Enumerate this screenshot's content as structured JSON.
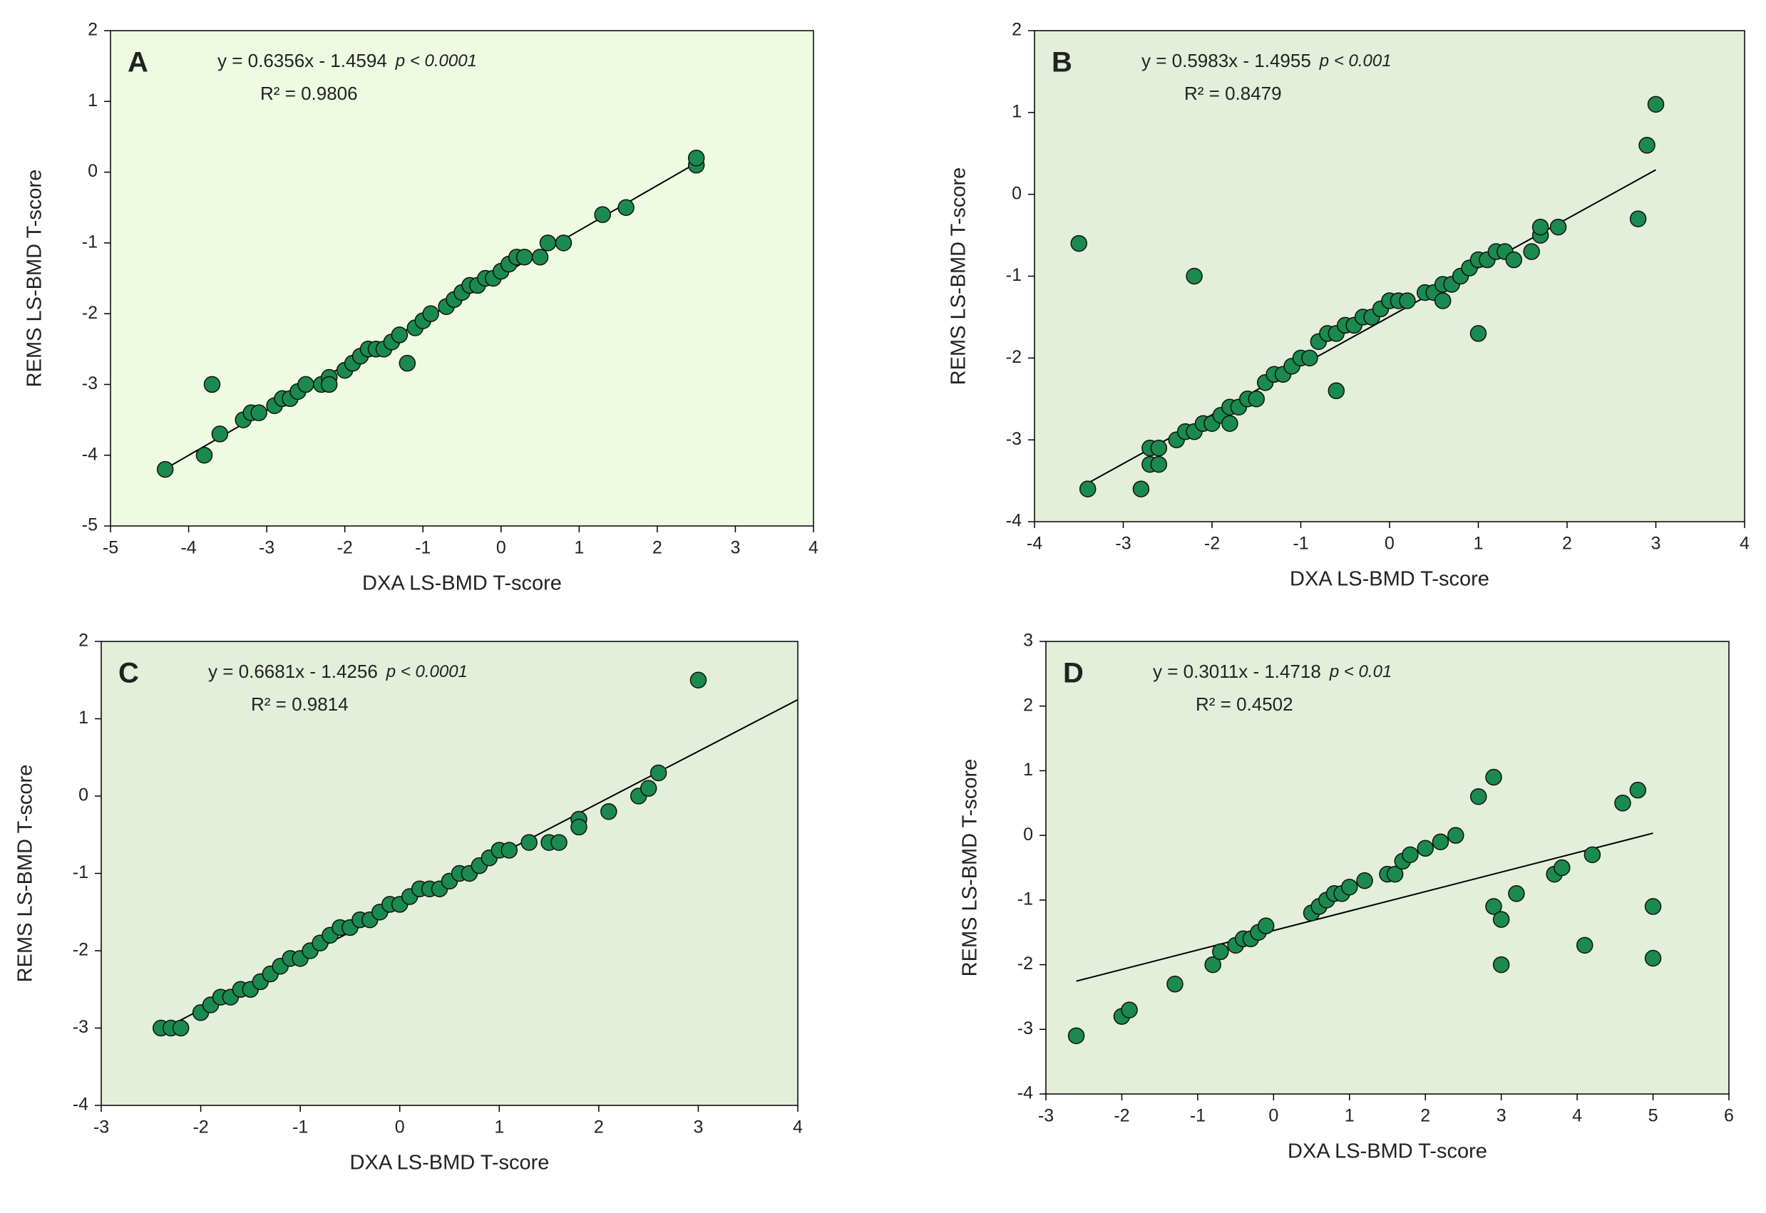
{
  "chart_data": [
    {
      "type": "scatter",
      "panel_label": "A",
      "equation": "y = 0.6356x - 1.4594",
      "p_value": "p < 0.0001",
      "r_squared": "R² = 0.9806",
      "x_label": "DXA LS-BMD T-score",
      "y_label": "REMS LS-BMD T-score",
      "color": "#1b8a4f",
      "plot_color": "#eefbe0",
      "xlim": [
        -5,
        4
      ],
      "ylim": [
        -5,
        2
      ],
      "xticks": [
        -5,
        -4,
        -3,
        -2,
        -1,
        0,
        1,
        2,
        3,
        4
      ],
      "yticks": [
        -5,
        -4,
        -3,
        -2,
        -1,
        0,
        1,
        2
      ],
      "x": [
        -4.3,
        -3.8,
        -3.7,
        -3.6,
        -3.3,
        -3.2,
        -3.1,
        -2.9,
        -2.8,
        -2.7,
        -2.6,
        -2.5,
        -2.3,
        -2.2,
        -2.2,
        -2.0,
        -1.9,
        -1.8,
        -1.7,
        -1.6,
        -1.5,
        -1.4,
        -1.3,
        -1.2,
        -1.1,
        -1.0,
        -0.9,
        -0.7,
        -0.6,
        -0.5,
        -0.4,
        -0.3,
        -0.2,
        -0.1,
        0.0,
        0.1,
        0.2,
        0.3,
        0.5,
        0.6,
        0.8,
        1.3,
        1.6,
        2.5,
        2.5
      ],
      "values": [
        -4.2,
        -4.0,
        -3.0,
        -3.7,
        -3.5,
        -3.4,
        -3.4,
        -3.3,
        -3.2,
        -3.2,
        -3.1,
        -3.0,
        -3.0,
        -2.9,
        -3.0,
        -2.8,
        -2.7,
        -2.6,
        -2.5,
        -2.5,
        -2.5,
        -2.4,
        -2.3,
        -2.7,
        -2.2,
        -2.1,
        -2.0,
        -1.9,
        -1.8,
        -1.7,
        -1.6,
        -1.6,
        -1.5,
        -1.5,
        -1.4,
        -1.3,
        -1.2,
        -1.2,
        -1.2,
        -1.0,
        -1.0,
        -0.6,
        -0.5,
        0.1,
        0.2
      ],
      "trendline": {
        "slope": 0.6356,
        "intercept": -1.4594,
        "x": [
          -4.3,
          2.5
        ]
      }
    },
    {
      "type": "scatter",
      "panel_label": "B",
      "equation": "y = 0.5983x - 1.4955",
      "p_value": "p < 0.001",
      "r_squared": "R² = 0.8479",
      "x_label": "DXA LS-BMD T-score",
      "y_label": "REMS LS-BMD T-score",
      "color": "#1b8a4f",
      "plot_color": "#e3efd8",
      "xlim": [
        -4,
        4
      ],
      "ylim": [
        -4,
        2
      ],
      "xticks": [
        -4,
        -3,
        -2,
        -1,
        0,
        1,
        2,
        3,
        4
      ],
      "yticks": [
        -4,
        -3,
        -2,
        -1,
        0,
        1,
        2
      ],
      "x": [
        -3.5,
        -3.4,
        -2.8,
        -2.7,
        -2.7,
        -2.6,
        -2.6,
        -2.4,
        -2.3,
        -2.2,
        -2.2,
        -2.1,
        -2.0,
        -1.9,
        -1.8,
        -1.8,
        -1.7,
        -1.6,
        -1.5,
        -1.4,
        -1.3,
        -1.2,
        -1.1,
        -1.0,
        -0.9,
        -0.8,
        -0.7,
        -0.6,
        -0.6,
        -0.5,
        -0.4,
        -0.3,
        -0.2,
        -0.1,
        0.0,
        0.1,
        0.2,
        0.4,
        0.5,
        0.6,
        0.6,
        0.7,
        0.8,
        0.9,
        1.0,
        1.0,
        1.1,
        1.2,
        1.3,
        1.4,
        1.6,
        1.7,
        1.7,
        1.9,
        2.8,
        2.9,
        3.0
      ],
      "values": [
        -0.6,
        -3.6,
        -3.6,
        -3.1,
        -3.3,
        -3.1,
        -3.3,
        -3.0,
        -2.9,
        -1.0,
        -2.9,
        -2.8,
        -2.8,
        -2.7,
        -2.6,
        -2.8,
        -2.6,
        -2.5,
        -2.5,
        -2.3,
        -2.2,
        -2.2,
        -2.1,
        -2.0,
        -2.0,
        -1.8,
        -1.7,
        -1.7,
        -2.4,
        -1.6,
        -1.6,
        -1.5,
        -1.5,
        -1.4,
        -1.3,
        -1.3,
        -1.3,
        -1.2,
        -1.2,
        -1.1,
        -1.3,
        -1.1,
        -1.0,
        -0.9,
        -0.8,
        -1.7,
        -0.8,
        -0.7,
        -0.7,
        -0.8,
        -0.7,
        -0.5,
        -0.4,
        -0.4,
        -0.3,
        0.6,
        1.1
      ],
      "trendline": {
        "slope": 0.5983,
        "intercept": -1.4955,
        "x": [
          -3.4,
          3.0
        ]
      }
    },
    {
      "type": "scatter",
      "panel_label": "C",
      "equation": "y = 0.6681x - 1.4256",
      "p_value": "p < 0.0001",
      "r_squared": "R² = 0.9814",
      "x_label": "DXA LS-BMD T-score",
      "y_label": "REMS LS-BMD T-score",
      "color": "#1b8a4f",
      "plot_color": "#e3efd8",
      "xlim": [
        -3,
        4
      ],
      "ylim": [
        -4,
        2
      ],
      "xticks": [
        -3,
        -2,
        -1,
        0,
        1,
        2,
        3,
        4
      ],
      "yticks": [
        -4,
        -3,
        -2,
        -1,
        0,
        1,
        2
      ],
      "x": [
        -2.4,
        -2.3,
        -2.2,
        -2.0,
        -1.9,
        -1.8,
        -1.7,
        -1.6,
        -1.5,
        -1.4,
        -1.3,
        -1.2,
        -1.1,
        -1.0,
        -0.9,
        -0.8,
        -0.7,
        -0.6,
        -0.5,
        -0.4,
        -0.3,
        -0.2,
        -0.1,
        0.0,
        0.1,
        0.2,
        0.3,
        0.4,
        0.5,
        0.6,
        0.7,
        0.8,
        0.9,
        1.0,
        1.1,
        1.3,
        1.5,
        1.6,
        1.8,
        1.8,
        2.1,
        2.4,
        2.5,
        2.6,
        3.0
      ],
      "values": [
        -3.0,
        -3.0,
        -3.0,
        -2.8,
        -2.7,
        -2.6,
        -2.6,
        -2.5,
        -2.5,
        -2.4,
        -2.3,
        -2.2,
        -2.1,
        -2.1,
        -2.0,
        -1.9,
        -1.8,
        -1.7,
        -1.7,
        -1.6,
        -1.6,
        -1.5,
        -1.4,
        -1.4,
        -1.3,
        -1.2,
        -1.2,
        -1.2,
        -1.1,
        -1.0,
        -1.0,
        -0.9,
        -0.8,
        -0.7,
        -0.7,
        -0.6,
        -0.6,
        -0.6,
        -0.3,
        -0.4,
        -0.2,
        0.0,
        0.1,
        0.3,
        1.5
      ],
      "trendline": {
        "slope": 0.6681,
        "intercept": -1.4256,
        "x": [
          -2.3,
          4
        ]
      }
    },
    {
      "type": "scatter",
      "panel_label": "D",
      "equation": "y = 0.3011x - 1.4718",
      "p_value": "p < 0.01",
      "r_squared": "R² = 0.4502",
      "x_label": "DXA LS-BMD T-score",
      "y_label": "REMS LS-BMD T-score",
      "color": "#1b8a4f",
      "plot_color": "#e3efd8",
      "xlim": [
        -3,
        6
      ],
      "ylim": [
        -4,
        3
      ],
      "xticks": [
        -3,
        -2,
        -1,
        0,
        1,
        2,
        3,
        4,
        5,
        6
      ],
      "yticks": [
        -4,
        -3,
        -2,
        -1,
        0,
        1,
        2,
        3
      ],
      "x": [
        -2.6,
        -2.0,
        -1.9,
        -1.3,
        -0.8,
        -0.7,
        -0.5,
        -0.4,
        -0.3,
        -0.2,
        -0.1,
        0.5,
        0.6,
        0.7,
        0.8,
        0.9,
        1.0,
        1.2,
        1.5,
        1.6,
        1.7,
        1.8,
        2.0,
        2.2,
        2.4,
        2.7,
        2.9,
        2.9,
        3.0,
        3.0,
        3.2,
        3.7,
        3.8,
        4.1,
        4.2,
        4.6,
        4.8,
        5.0,
        5.0
      ],
      "values": [
        -3.1,
        -2.8,
        -2.7,
        -2.3,
        -2.0,
        -1.8,
        -1.7,
        -1.6,
        -1.6,
        -1.5,
        -1.4,
        -1.2,
        -1.1,
        -1.0,
        -0.9,
        -0.9,
        -0.8,
        -0.7,
        -0.6,
        -0.6,
        -0.4,
        -0.3,
        -0.2,
        -0.1,
        0.0,
        0.6,
        0.9,
        -1.1,
        -1.3,
        -2.0,
        -0.9,
        -0.6,
        -0.5,
        -1.7,
        -0.3,
        0.5,
        0.7,
        -1.1,
        -1.9
      ],
      "trendline": {
        "slope": 0.3011,
        "intercept": -1.4718,
        "x": [
          -2.6,
          5.0
        ]
      }
    }
  ]
}
